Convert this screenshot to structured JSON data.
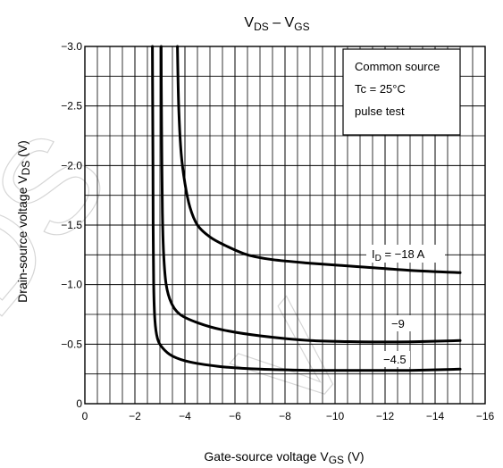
{
  "chart_data": {
    "type": "line",
    "title": {
      "main": "V",
      "sub1": "DS",
      "dash": " – V",
      "sub2": "GS"
    },
    "xlabel": {
      "main": "Gate-source voltage   V",
      "sub": "GS",
      "unit": "   (V)"
    },
    "ylabel": {
      "main": "Drain-source voltage   V",
      "sub": "DS",
      "unit": "   (V)"
    },
    "xlim": [
      0,
      -16
    ],
    "ylim": [
      0,
      -3.0
    ],
    "x_ticks": [
      0,
      -2,
      -4,
      -6,
      -8,
      -10,
      -12,
      -14,
      -16
    ],
    "y_ticks": [
      0,
      -0.5,
      -1.0,
      -1.5,
      -2.0,
      -2.5,
      -3.0
    ],
    "x_tick_labels": [
      "0",
      "−2",
      "−4",
      "−6",
      "−8",
      "−10",
      "−12",
      "−14",
      "−16"
    ],
    "y_tick_labels": [
      "0",
      "−0.5",
      "−1.0",
      "−1.5",
      "−2.0",
      "−2.5",
      "−3.0"
    ],
    "grid": true,
    "conditions": [
      "Common source",
      "Tc = 25°C",
      "pulse test"
    ],
    "series": [
      {
        "name": "ID = −18 A",
        "label_parts": {
          "main": "I",
          "sub": "D",
          "rest": " = −18 A"
        },
        "x": [
          -3.7,
          -3.75,
          -3.85,
          -4.0,
          -4.2,
          -4.5,
          -5.0,
          -5.6,
          -6.5,
          -7.5,
          -9,
          -11,
          -13,
          -15
        ],
        "y": [
          -3.0,
          -2.5,
          -2.1,
          -1.85,
          -1.65,
          -1.5,
          -1.4,
          -1.33,
          -1.25,
          -1.21,
          -1.18,
          -1.15,
          -1.12,
          -1.1
        ]
      },
      {
        "name": "−9",
        "label_parts": {
          "main": "−9"
        },
        "x": [
          -3.05,
          -3.06,
          -3.08,
          -3.1,
          -3.15,
          -3.25,
          -3.45,
          -3.8,
          -4.5,
          -5.5,
          -7,
          -9,
          -11,
          -13,
          -15
        ],
        "y": [
          -3.0,
          -2.5,
          -2.0,
          -1.6,
          -1.25,
          -1.0,
          -0.85,
          -0.75,
          -0.68,
          -0.62,
          -0.57,
          -0.53,
          -0.52,
          -0.52,
          -0.53
        ]
      },
      {
        "name": "−4.5",
        "label_parts": {
          "main": "−4.5"
        },
        "x": [
          -2.7,
          -2.71,
          -2.72,
          -2.73,
          -2.75,
          -2.8,
          -2.9,
          -3.1,
          -3.5,
          -4.2,
          -5.5,
          -7,
          -9,
          -11,
          -13,
          -15
        ],
        "y": [
          -3.0,
          -2.5,
          -2.0,
          -1.5,
          -1.0,
          -0.7,
          -0.55,
          -0.47,
          -0.4,
          -0.35,
          -0.31,
          -0.29,
          -0.28,
          -0.28,
          -0.28,
          -0.29
        ]
      }
    ]
  }
}
